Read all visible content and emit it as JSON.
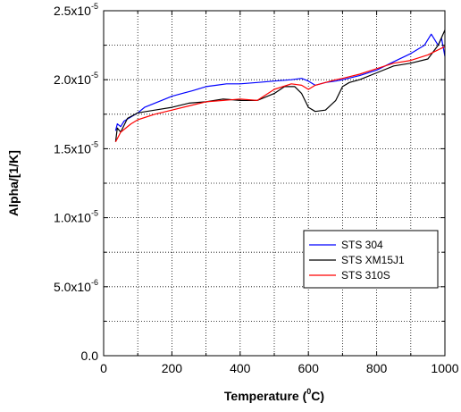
{
  "chart_data": {
    "type": "line",
    "xlabel": "Temperature",
    "xlabel_sup": "0",
    "xlabel_unit": "C",
    "ylabel": "Alpha/[1/K]",
    "xlim": [
      0,
      1000
    ],
    "ylim": [
      0,
      2.5e-05
    ],
    "xticks": [
      0,
      200,
      400,
      600,
      800,
      1000
    ],
    "xtick_labels": [
      "0",
      "200",
      "400",
      "600",
      "800",
      "1000"
    ],
    "yticks": [
      0,
      5e-06,
      1e-05,
      1.5e-05,
      2e-05,
      2.5e-05
    ],
    "ytick_labels": [
      {
        "base": "0.0",
        "exp": ""
      },
      {
        "base": "5.0x10",
        "exp": "-6"
      },
      {
        "base": "1.0x10",
        "exp": "-5"
      },
      {
        "base": "1.5x10",
        "exp": "-5"
      },
      {
        "base": "2.0x10",
        "exp": "-5"
      },
      {
        "base": "2.5x10",
        "exp": "-5"
      }
    ],
    "grid": true,
    "legend_position": "right-middle",
    "series": [
      {
        "name": "STS 304",
        "color": "#0000ff",
        "x": [
          35,
          40,
          50,
          60,
          80,
          100,
          120,
          150,
          180,
          200,
          230,
          260,
          300,
          330,
          360,
          400,
          450,
          500,
          550,
          580,
          600,
          620,
          650,
          680,
          700,
          750,
          800,
          850,
          900,
          940,
          960,
          980,
          990,
          1000
        ],
        "y": [
          1.63e-05,
          1.68e-05,
          1.66e-05,
          1.7e-05,
          1.73e-05,
          1.76e-05,
          1.8e-05,
          1.83e-05,
          1.86e-05,
          1.88e-05,
          1.9e-05,
          1.92e-05,
          1.95e-05,
          1.96e-05,
          1.97e-05,
          1.97e-05,
          1.98e-05,
          1.99e-05,
          2e-05,
          2.01e-05,
          1.99e-05,
          1.96e-05,
          1.98e-05,
          1.99e-05,
          2e-05,
          2.03e-05,
          2.07e-05,
          2.13e-05,
          2.19e-05,
          2.25e-05,
          2.33e-05,
          2.25e-05,
          2.3e-05,
          2.17e-05
        ]
      },
      {
        "name": "STS XM15J1",
        "color": "#000000",
        "x": [
          35,
          40,
          50,
          70,
          100,
          150,
          200,
          250,
          300,
          350,
          400,
          450,
          500,
          530,
          560,
          580,
          600,
          620,
          650,
          680,
          700,
          720,
          750,
          800,
          850,
          900,
          950,
          980,
          1000
        ],
        "y": [
          1.55e-05,
          1.65e-05,
          1.62e-05,
          1.72e-05,
          1.76e-05,
          1.78e-05,
          1.8e-05,
          1.83e-05,
          1.84e-05,
          1.86e-05,
          1.85e-05,
          1.85e-05,
          1.9e-05,
          1.95e-05,
          1.95e-05,
          1.9e-05,
          1.8e-05,
          1.77e-05,
          1.78e-05,
          1.85e-05,
          1.95e-05,
          1.98e-05,
          2e-05,
          2.05e-05,
          2.1e-05,
          2.12e-05,
          2.15e-05,
          2.25e-05,
          2.36e-05
        ]
      },
      {
        "name": "STS 310S",
        "color": "#ff0000",
        "x": [
          35,
          50,
          80,
          100,
          150,
          200,
          250,
          300,
          350,
          400,
          450,
          500,
          550,
          580,
          600,
          620,
          650,
          680,
          700,
          750,
          800,
          850,
          900,
          950,
          1000
        ],
        "y": [
          1.55e-05,
          1.62e-05,
          1.68e-05,
          1.71e-05,
          1.75e-05,
          1.78e-05,
          1.81e-05,
          1.84e-05,
          1.85e-05,
          1.86e-05,
          1.85e-05,
          1.93e-05,
          1.97e-05,
          1.96e-05,
          1.93e-05,
          1.96e-05,
          1.98e-05,
          2e-05,
          2.01e-05,
          2.04e-05,
          2.08e-05,
          2.12e-05,
          2.14e-05,
          2.18e-05,
          2.24e-05
        ]
      }
    ]
  }
}
